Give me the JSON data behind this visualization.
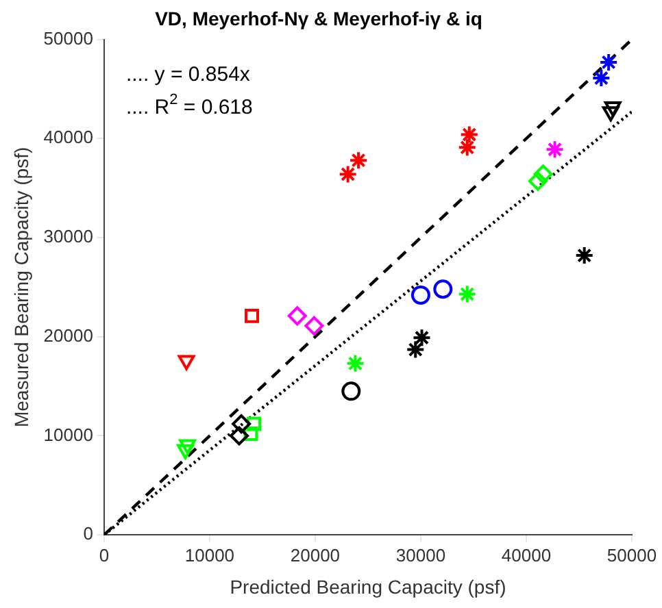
{
  "chart_data": {
    "type": "scatter",
    "title": "VD, Meyerhof-Nγ & Meyerhof-iγ & iq",
    "xlabel": "Predicted Bearing Capacity (psf)",
    "ylabel": "Measured Bearing Capacity (psf)",
    "xlim": [
      0,
      50000
    ],
    "ylim": [
      0,
      50000
    ],
    "xticks": [
      0,
      10000,
      20000,
      30000,
      40000,
      50000
    ],
    "yticks": [
      0,
      10000,
      20000,
      30000,
      40000,
      50000
    ],
    "grid": false,
    "legend": false,
    "annotations": [
      ".... y = 0.854x",
      ".... R$^{2}$ = 0.618"
    ],
    "series": [
      {
        "color": "#0000ff",
        "marker": "cross",
        "x": [
          47800,
          47100
        ],
        "values": [
          47700,
          46100
        ]
      },
      {
        "color": "#000000",
        "marker": "triangle",
        "x": [
          48200,
          48000
        ],
        "values": [
          43200,
          42700
        ]
      },
      {
        "color": "#ff0000",
        "marker": "cross",
        "x": [
          34600,
          34400
        ],
        "values": [
          40400,
          39100
        ]
      },
      {
        "color": "#ff0000",
        "marker": "cross",
        "x": [
          24100,
          23100
        ],
        "values": [
          37800,
          36400
        ]
      },
      {
        "color": "#ff00ff",
        "marker": "cross",
        "x": [
          42700
        ],
        "values": [
          38900
        ]
      },
      {
        "color": "#00ff00",
        "marker": "diamond",
        "x": [
          41600,
          41100
        ],
        "values": [
          36400,
          35700
        ]
      },
      {
        "color": "#000000",
        "marker": "cross",
        "x": [
          45500
        ],
        "values": [
          28200
        ]
      },
      {
        "color": "#0000ff",
        "marker": "circle",
        "x": [
          30000,
          32100
        ],
        "values": [
          24200,
          24800
        ]
      },
      {
        "color": "#00ff00",
        "marker": "cross",
        "x": [
          34400
        ],
        "values": [
          24300
        ]
      },
      {
        "color": "#ff00ff",
        "marker": "diamond",
        "x": [
          18300,
          19900
        ],
        "values": [
          22100,
          21100
        ]
      },
      {
        "color": "#ff0000",
        "marker": "square",
        "x": [
          14000
        ],
        "values": [
          22100
        ]
      },
      {
        "color": "#ff0000",
        "marker": "triangle",
        "x": [
          7800
        ],
        "values": [
          17600
        ]
      },
      {
        "color": "#00ff00",
        "marker": "cross",
        "x": [
          23800
        ],
        "values": [
          17300
        ]
      },
      {
        "color": "#000000",
        "marker": "cross",
        "x": [
          30100,
          29500
        ],
        "values": [
          19900,
          18700
        ]
      },
      {
        "color": "#000000",
        "marker": "circle",
        "x": [
          23400
        ],
        "values": [
          14500
        ]
      },
      {
        "color": "#00ff00",
        "marker": "triangle",
        "x": [
          7900,
          7700
        ],
        "values": [
          9100,
          8600
        ]
      },
      {
        "color": "#000000",
        "marker": "diamond",
        "x": [
          13000,
          12800
        ],
        "values": [
          11200,
          10000
        ]
      },
      {
        "color": "#00ff00",
        "marker": "square",
        "x": [
          14200,
          13900
        ],
        "values": [
          11200,
          10200
        ]
      },
      {
        "type": "line",
        "color": "#000000",
        "line_style": "dashed",
        "marker": "none",
        "x": [
          0,
          50000
        ],
        "values": [
          0,
          50000
        ]
      },
      {
        "type": "line",
        "color": "#000000",
        "line_style": "dotted",
        "marker": "none",
        "x": [
          0,
          50000
        ],
        "values": [
          0,
          42700
        ]
      }
    ]
  }
}
